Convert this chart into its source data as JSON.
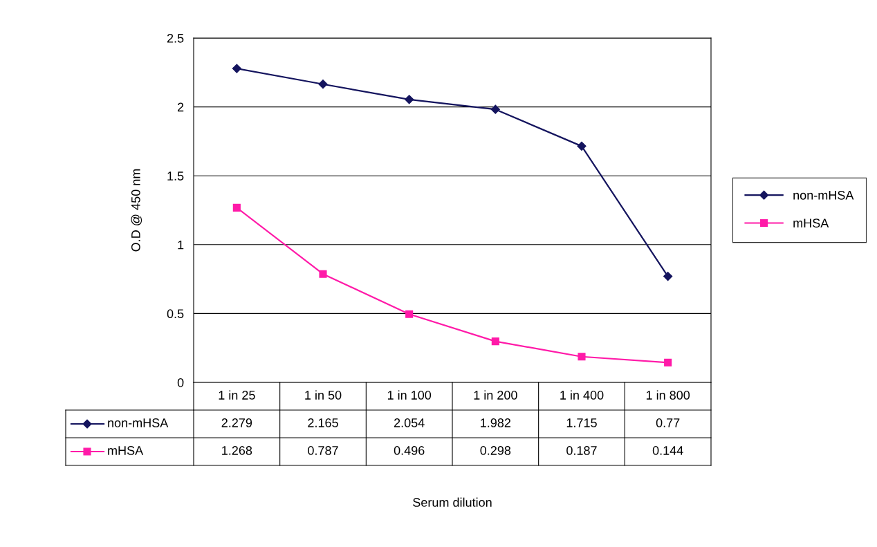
{
  "chart_data": {
    "type": "line",
    "annotations": [
      "Serum dilution"
    ],
    "ylabel": "O.D @ 450 nm",
    "categories": [
      "1 in 25",
      "1 in 50",
      "1 in 100",
      "1 in 200",
      "1 in 400",
      "1 in 800"
    ],
    "series": [
      {
        "name": "non-mHSA",
        "color": "#14145e",
        "marker": "diamond",
        "values": [
          2.279,
          2.165,
          2.054,
          1.982,
          1.715,
          0.77
        ]
      },
      {
        "name": "mHSA",
        "color": "#ff1aa8",
        "marker": "square",
        "values": [
          1.268,
          0.787,
          0.496,
          0.298,
          0.187,
          0.144
        ]
      }
    ],
    "ylim": [
      0,
      2.5
    ],
    "yticks": [
      0,
      0.5,
      1,
      1.5,
      2,
      2.5
    ],
    "grid": "y",
    "legend": "right",
    "data_labels": true
  }
}
